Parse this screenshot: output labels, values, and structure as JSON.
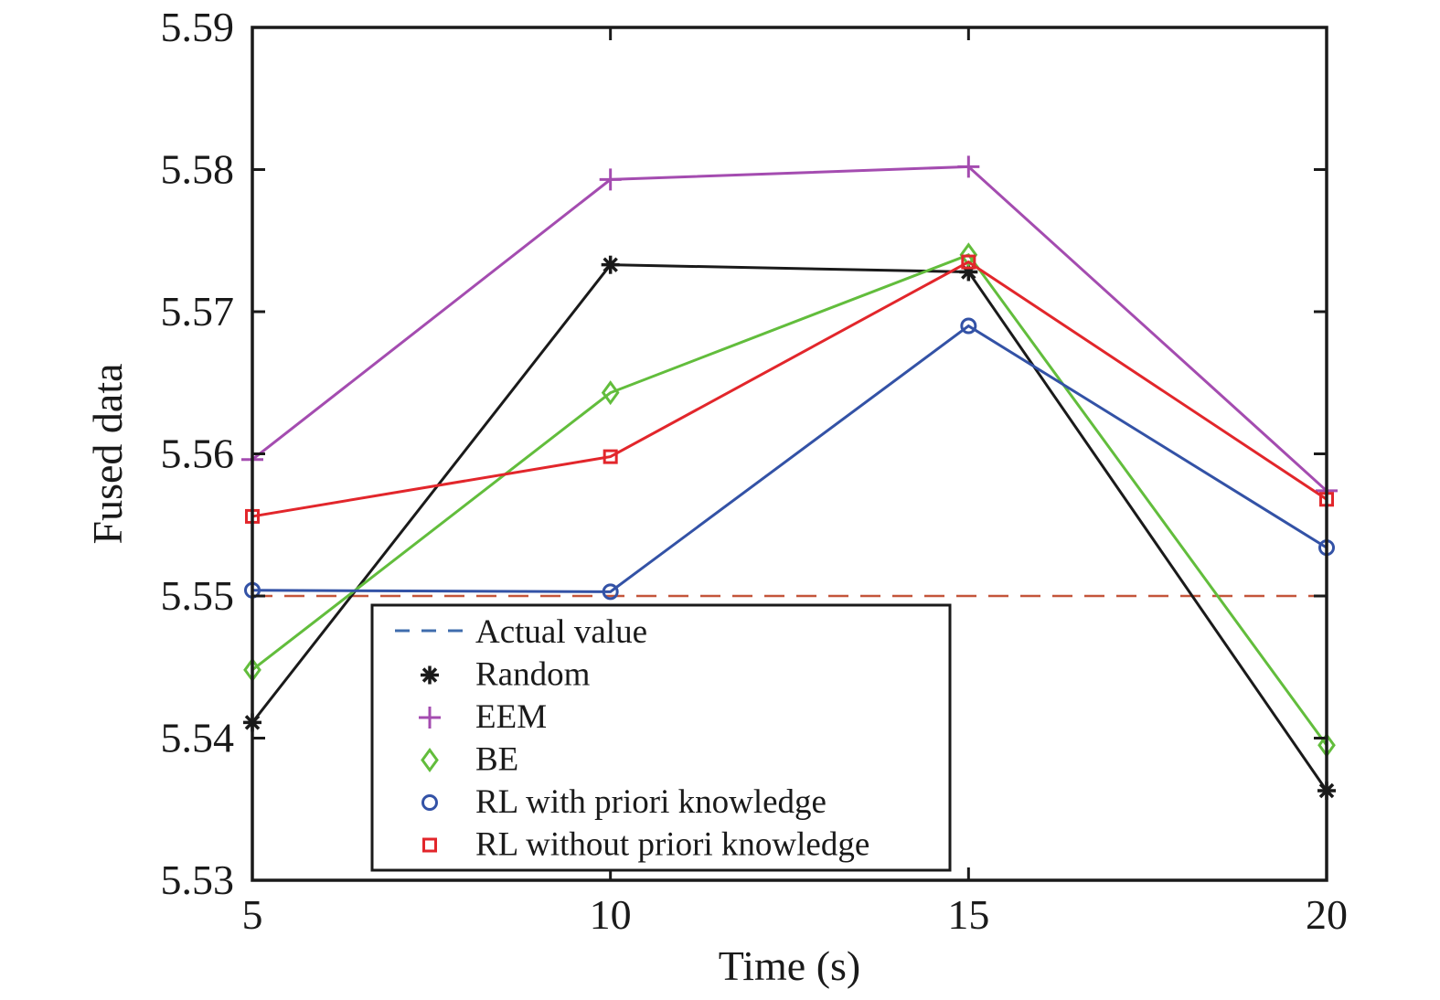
{
  "chart_data": {
    "type": "line",
    "title": "",
    "xlabel": "Time (s)",
    "ylabel": "Fused data",
    "xlim": [
      5,
      20
    ],
    "ylim": [
      5.53,
      5.59
    ],
    "x_ticks": [
      "5",
      "10",
      "15",
      "20"
    ],
    "x_tick_values": [
      5,
      10,
      15,
      20
    ],
    "y_ticks": [
      "5.53",
      "5.54",
      "5.55",
      "5.56",
      "5.57",
      "5.58",
      "5.59"
    ],
    "y_tick_values": [
      5.53,
      5.54,
      5.55,
      5.56,
      5.57,
      5.58,
      5.59
    ],
    "grid": false,
    "legend_position": "bottom-center",
    "x": [
      5,
      10,
      15,
      20
    ],
    "series": [
      {
        "name": "Actual value",
        "marker": "none",
        "line": "dashed",
        "color": "#c4553a",
        "legend_color": "#3f6cad",
        "values": [
          5.55,
          5.55,
          5.55,
          5.55
        ]
      },
      {
        "name": "Random",
        "marker": "asterisk",
        "line": "solid",
        "color": "#1a1a1a",
        "values": [
          5.5411,
          5.5733,
          5.5728,
          5.5363
        ]
      },
      {
        "name": "EEM",
        "marker": "plus",
        "line": "solid",
        "color": "#a44cb0",
        "values": [
          5.5596,
          5.5793,
          5.5802,
          5.5574
        ]
      },
      {
        "name": "BE",
        "marker": "diamond",
        "line": "solid",
        "color": "#62bd3c",
        "values": [
          5.5448,
          5.5643,
          5.574,
          5.5395
        ]
      },
      {
        "name": "RL with priori knowledge",
        "marker": "circle",
        "line": "solid",
        "color": "#3352a6",
        "values": [
          5.5504,
          5.5503,
          5.569,
          5.5534
        ]
      },
      {
        "name": "RL without priori knowledge",
        "marker": "square",
        "line": "solid",
        "color": "#e2262b",
        "values": [
          5.5556,
          5.5598,
          5.5735,
          5.5568
        ]
      }
    ]
  }
}
